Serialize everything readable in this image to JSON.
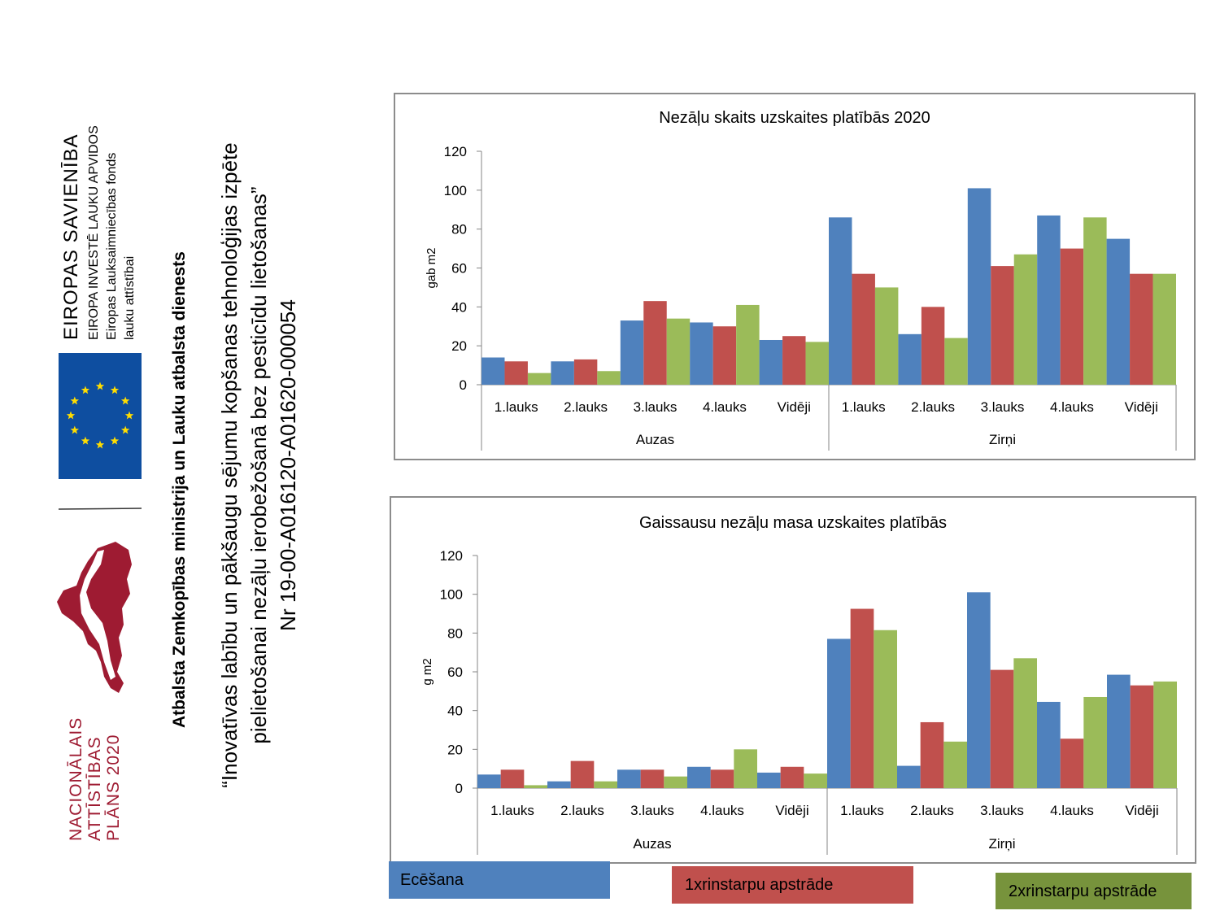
{
  "logos": {
    "eu": {
      "title": "EIROPAS SAVIENĪBA",
      "line1": "EIROPA INVESTĒ LAUKU APVIDOS",
      "line2": "Eiropas Lauksaimniecības fonds",
      "line3": "lauku attīstībai"
    },
    "nap": {
      "line1": "NACIONĀLAIS",
      "line2": "ATTĪSTĪBAS",
      "line3": "PLĀNS 2020"
    }
  },
  "support_text": "Atbalsta Zemkopības ministrija un Lauku atbalsta dienests",
  "project": {
    "line1": "“Inovatīvas labību un pākšaugu sējumu kopšanas tehnoloģijas izpēte",
    "line2": "pielietošanai nezāļu ierobežošanā bez pesticīdu lietošanas”",
    "line3": "Nr 19-00-A016120-A01620-000054"
  },
  "colors": {
    "blue": "#4f81bd",
    "red": "#c0504d",
    "green": "#9bbb59",
    "eu_flag": "#0e4ea0",
    "eu_star": "#ffdd00",
    "nap": "#9e1b32",
    "legend_green": "#77933c"
  },
  "legend": {
    "items": [
      {
        "label": "Ecēšana",
        "color": "#4f81bd"
      },
      {
        "label": "1xrinstarpu apstrāde",
        "color": "#c0504d"
      },
      {
        "label": "2xrinstarpu apstrāde",
        "color": "#77933c"
      }
    ]
  },
  "chart_data": [
    {
      "type": "bar",
      "title": "Nezāļu skaits uzskaites platībās 2020",
      "ylabel": "gab m2",
      "xlabel": "",
      "ylim": [
        0,
        120
      ],
      "yticks": [
        0,
        20,
        40,
        60,
        80,
        100,
        120
      ],
      "groups": [
        "Auzas",
        "Zirņi"
      ],
      "categories": [
        "1.lauks",
        "2.lauks",
        "3.lauks",
        "4.lauks",
        "Vidēji",
        "1.lauks",
        "2.lauks",
        "3.lauks",
        "4.lauks",
        "Vidēji"
      ],
      "series": [
        {
          "name": "Ecēšana",
          "color": "#4f81bd",
          "values": [
            14,
            12,
            33,
            32,
            23,
            86,
            26,
            101,
            87,
            75
          ]
        },
        {
          "name": "1xrinstarpu apstrāde",
          "color": "#c0504d",
          "values": [
            12,
            13,
            43,
            30,
            25,
            57,
            40,
            61,
            70,
            57
          ]
        },
        {
          "name": "2xrinstarpu apstrāde",
          "color": "#9bbb59",
          "values": [
            6,
            7,
            34,
            41,
            22,
            50,
            24,
            67,
            86,
            57
          ]
        }
      ]
    },
    {
      "type": "bar",
      "title": "Gaissausu nezāļu masa uzskaites platībās",
      "ylabel": "g m2",
      "xlabel": "",
      "ylim": [
        0,
        120
      ],
      "yticks": [
        0,
        20,
        40,
        60,
        80,
        100,
        120
      ],
      "groups": [
        "Auzas",
        "Zirņi"
      ],
      "categories": [
        "1.lauks",
        "2.lauks",
        "3.lauks",
        "4.lauks",
        "Vidēji",
        "1.lauks",
        "2.lauks",
        "3.lauks",
        "4.lauks",
        "Vidēji"
      ],
      "series": [
        {
          "name": "Ecēšana",
          "color": "#4f81bd",
          "values": [
            7,
            3.5,
            9.5,
            11,
            8,
            77,
            11.5,
            101,
            44.5,
            58.5
          ]
        },
        {
          "name": "1xrinstarpu apstrāde",
          "color": "#c0504d",
          "values": [
            9.5,
            14,
            9.5,
            9.5,
            11,
            92.5,
            34,
            61,
            25.5,
            53
          ]
        },
        {
          "name": "2xrinstarpu apstrāde",
          "color": "#9bbb59",
          "values": [
            1.5,
            3.5,
            6,
            20,
            7.5,
            81.5,
            24,
            67,
            47,
            55
          ]
        }
      ]
    }
  ]
}
